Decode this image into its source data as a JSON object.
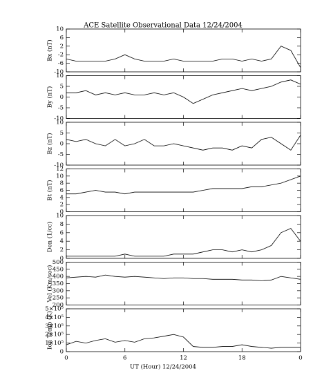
{
  "chart_data": [
    {
      "type": "line",
      "title": "ACE Satellite Observational Data   12/24/2004",
      "ylabel": "Bx (nT)",
      "x": [
        0,
        1,
        2,
        3,
        4,
        5,
        6,
        7,
        8,
        9,
        10,
        11,
        12,
        13,
        14,
        15,
        16,
        17,
        18,
        19,
        20,
        21,
        22,
        23,
        24
      ],
      "xlim": [
        0,
        24
      ],
      "values": [
        -4,
        -5,
        -5,
        -5,
        -5,
        -4,
        -2,
        -4,
        -5,
        -5,
        -5,
        -4,
        -5,
        -5,
        -5,
        -5,
        -4,
        -4,
        -5,
        -4,
        -5,
        -4,
        2,
        0,
        -8
      ],
      "ylim": [
        -10,
        10
      ],
      "yticks": [
        -10,
        -6,
        -2,
        2,
        6,
        10
      ],
      "color": "#000000"
    },
    {
      "type": "line",
      "ylabel": "By (nT)",
      "x": [
        0,
        1,
        2,
        3,
        4,
        5,
        6,
        7,
        8,
        9,
        10,
        11,
        12,
        13,
        14,
        15,
        16,
        17,
        18,
        19,
        20,
        21,
        22,
        23,
        24
      ],
      "xlim": [
        0,
        24
      ],
      "values": [
        2,
        2,
        3,
        1,
        2,
        1,
        2,
        1,
        1,
        2,
        1,
        2,
        0,
        -3,
        -1,
        1,
        2,
        3,
        4,
        3,
        4,
        5,
        7,
        8,
        6
      ],
      "ylim": [
        -10,
        10
      ],
      "yticks": [
        -10,
        -5,
        0,
        5,
        10
      ],
      "color": "#000000"
    },
    {
      "type": "line",
      "ylabel": "Bz (nT)",
      "x": [
        0,
        1,
        2,
        3,
        4,
        5,
        6,
        7,
        8,
        9,
        10,
        11,
        12,
        13,
        14,
        15,
        16,
        17,
        18,
        19,
        20,
        21,
        22,
        23,
        24
      ],
      "xlim": [
        0,
        24
      ],
      "values": [
        2,
        1,
        2,
        0,
        -1,
        2,
        -1,
        0,
        2,
        -1,
        -1,
        0,
        -1,
        -2,
        -3,
        -2,
        -2,
        -3,
        -1,
        -2,
        2,
        3,
        0,
        -3,
        4
      ],
      "ylim": [
        -10,
        10
      ],
      "yticks": [
        -10,
        -5,
        0,
        5,
        10
      ],
      "color": "#000000"
    },
    {
      "type": "line",
      "ylabel": "Bt (nT)",
      "x": [
        0,
        1,
        2,
        3,
        4,
        5,
        6,
        7,
        8,
        9,
        10,
        11,
        12,
        13,
        14,
        15,
        16,
        17,
        18,
        19,
        20,
        21,
        22,
        23,
        24
      ],
      "xlim": [
        0,
        24
      ],
      "values": [
        5,
        5,
        5.5,
        6,
        5.5,
        5.5,
        5,
        5.5,
        5.5,
        5.5,
        5.5,
        5.5,
        5.5,
        5.5,
        6,
        6.5,
        6.5,
        6.5,
        6.5,
        7,
        7,
        7.5,
        8,
        9,
        10
      ],
      "ylim": [
        0,
        12
      ],
      "yticks": [
        0,
        2,
        4,
        6,
        8,
        10,
        12
      ],
      "color": "#000000"
    },
    {
      "type": "line",
      "ylabel": "Den (1/cc)",
      "x": [
        0,
        1,
        2,
        3,
        4,
        5,
        6,
        7,
        8,
        9,
        10,
        11,
        12,
        13,
        14,
        15,
        16,
        17,
        18,
        19,
        20,
        21,
        22,
        23,
        24
      ],
      "xlim": [
        0,
        24
      ],
      "values": [
        0.5,
        0.5,
        0.5,
        0.5,
        0.5,
        0.5,
        1,
        0.5,
        0.5,
        0.5,
        0.5,
        1,
        1,
        1,
        1.5,
        2,
        2,
        1.5,
        2,
        1.5,
        2,
        3,
        6,
        7,
        4
      ],
      "ylim": [
        0,
        10
      ],
      "yticks": [
        0,
        2,
        4,
        6,
        8,
        10
      ],
      "color": "#000000"
    },
    {
      "type": "line",
      "ylabel": "Vel (Km/sec)",
      "x": [
        0,
        1,
        2,
        3,
        4,
        5,
        6,
        7,
        8,
        9,
        10,
        11,
        12,
        13,
        14,
        15,
        16,
        17,
        18,
        19,
        20,
        21,
        22,
        23,
        24
      ],
      "xlim": [
        0,
        24
      ],
      "values": [
        390,
        395,
        400,
        395,
        410,
        400,
        395,
        400,
        395,
        390,
        385,
        390,
        390,
        385,
        385,
        380,
        380,
        380,
        375,
        375,
        370,
        375,
        400,
        390,
        380
      ],
      "ylim": [
        200,
        500
      ],
      "yticks": [
        200,
        250,
        300,
        350,
        400,
        450,
        500
      ],
      "color": "#000000"
    },
    {
      "type": "line",
      "ylabel": "Ion Temp (K)",
      "xlabel": "UT (Hour)   12/24/2004",
      "x": [
        0,
        1,
        2,
        3,
        4,
        5,
        6,
        7,
        8,
        9,
        10,
        11,
        12,
        13,
        14,
        15,
        16,
        17,
        18,
        19,
        20,
        21,
        22,
        23,
        24
      ],
      "xlim": [
        0,
        24
      ],
      "xticks": [
        0,
        6,
        12,
        18,
        {
          "value": 24,
          "label": "0"
        }
      ],
      "values": [
        80000,
        120000,
        100000,
        130000,
        150000,
        110000,
        130000,
        110000,
        150000,
        160000,
        180000,
        200000,
        170000,
        60000,
        50000,
        50000,
        60000,
        60000,
        80000,
        60000,
        50000,
        40000,
        50000,
        50000,
        50000
      ],
      "ylim": [
        0,
        500000
      ],
      "yticks": [
        0,
        {
          "value": 100000,
          "label": "1×10⁵"
        },
        {
          "value": 200000,
          "label": "2×10⁵"
        },
        {
          "value": 300000,
          "label": "3×10⁵"
        },
        {
          "value": 400000,
          "label": "4×10⁵"
        },
        {
          "value": 500000,
          "label": "5×10⁵"
        }
      ],
      "color": "#000000"
    }
  ]
}
